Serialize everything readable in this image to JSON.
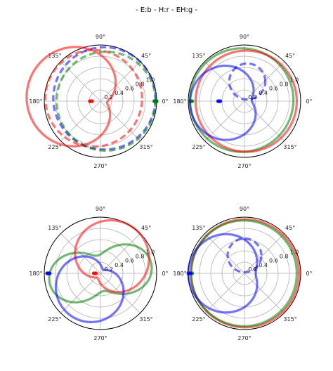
{
  "figure": {
    "title": "- E:b - H:r - EH:g -"
  },
  "colors": {
    "E": "#0000ff",
    "H": "#ff0000",
    "EH": "#008000"
  },
  "chart_data": [
    {
      "type": "line",
      "projection": "polar",
      "angle_ticks": [
        "0°",
        "45°",
        "90°",
        "135°",
        "180°",
        "225°",
        "270°",
        "315°"
      ],
      "radial_ticks": [
        "0.2",
        "0.4",
        "0.6",
        "0.8",
        "1.0"
      ],
      "rlim": [
        0,
        1.0
      ],
      "grid": true,
      "series": [
        {
          "key": "H",
          "style": "dashed",
          "curve": "circle",
          "params": {
            "cx": -0.12,
            "cy": 0.05,
            "R": 0.86
          },
          "markers": [
            {
              "r": 0.17,
              "theta_deg": 180
            }
          ]
        },
        {
          "key": "E",
          "style": "dashed",
          "curve": "circle",
          "params": {
            "cx": 0.07,
            "cy": 0.05,
            "R": 0.91
          },
          "markers": [
            {
              "r": 0.98,
              "theta_deg": 0
            }
          ]
        },
        {
          "key": "EH",
          "style": "dashed",
          "curve": "circle",
          "params": {
            "cx": 0.1,
            "cy": 0.0,
            "R": 0.88
          },
          "markers": [
            {
              "r": 0.98,
              "theta_deg": 0
            }
          ]
        },
        {
          "key": "H",
          "style": "solid",
          "curve": "lobe",
          "params": {
            "A": 0.72,
            "B": -0.6,
            "k": 1,
            "phi": -10
          },
          "markers": []
        }
      ]
    },
    {
      "type": "line",
      "projection": "polar",
      "angle_ticks": [
        "0°",
        "45°",
        "90°",
        "135°",
        "180°",
        "225°",
        "270°",
        "315°"
      ],
      "radial_ticks": [
        "0.2",
        "0.4",
        "0.6",
        "0.8",
        "1.0"
      ],
      "rlim": [
        0,
        1.0
      ],
      "grid": true,
      "series": [
        {
          "key": "EH",
          "style": "solid",
          "curve": "circle",
          "params": {
            "cx": -0.05,
            "cy": 0.02,
            "R": 0.92
          },
          "markers": [
            {
              "r": 0.95,
              "theta_deg": 180
            }
          ]
        },
        {
          "key": "H",
          "style": "solid",
          "curve": "circle",
          "params": {
            "cx": 0.03,
            "cy": 0.0,
            "R": 0.9
          },
          "markers": []
        },
        {
          "key": "E",
          "style": "solid",
          "curve": "lobe",
          "params": {
            "A": 0.55,
            "B": 0.42,
            "k": 1,
            "phi": 185
          },
          "markers": [
            {
              "r": 0.45,
              "theta_deg": 180
            }
          ]
        },
        {
          "key": "E",
          "style": "dashed",
          "curve": "circle",
          "params": {
            "cx": 0.05,
            "cy": 0.35,
            "R": 0.32
          },
          "markers": []
        }
      ]
    },
    {
      "type": "line",
      "projection": "polar",
      "angle_ticks": [
        "0°",
        "45°",
        "90°",
        "135°",
        "180°",
        "225°",
        "270°",
        "315°"
      ],
      "radial_ticks": [
        "0.2",
        "0.4",
        "0.6",
        "0.8",
        "1.0"
      ],
      "rlim": [
        0,
        1.0
      ],
      "grid": true,
      "series": [
        {
          "key": "EH",
          "style": "solid",
          "curve": "lobe",
          "params": {
            "A": 0.62,
            "B": 0.3,
            "k": 2,
            "phi": 10
          },
          "markers": [
            {
              "r": 0.92,
              "theta_deg": 180
            }
          ]
        },
        {
          "key": "H",
          "style": "solid",
          "curve": "lobe",
          "params": {
            "A": 0.55,
            "B": 0.45,
            "k": 1,
            "phi": 55
          },
          "markers": [
            {
              "r": 0.1,
              "theta_deg": 180
            }
          ]
        },
        {
          "key": "E",
          "style": "solid",
          "curve": "lobe",
          "params": {
            "A": 0.5,
            "B": 0.42,
            "k": 1,
            "phi": 235
          },
          "markers": [
            {
              "r": 0.93,
              "theta_deg": 180
            }
          ]
        }
      ]
    },
    {
      "type": "line",
      "projection": "polar",
      "angle_ticks": [
        "0°",
        "45°",
        "90°",
        "135°",
        "180°",
        "225°",
        "270°",
        "315°"
      ],
      "radial_ticks": [
        "0.2",
        "0.4",
        "0.6",
        "0.8",
        "1.0"
      ],
      "rlim": [
        0,
        1.0
      ],
      "grid": true,
      "series": [
        {
          "key": "H",
          "style": "solid",
          "curve": "circle",
          "params": {
            "cx": 0.01,
            "cy": 0.0,
            "R": 0.96
          },
          "markers": []
        },
        {
          "key": "EH",
          "style": "solid",
          "curve": "circle",
          "params": {
            "cx": -0.01,
            "cy": 0.0,
            "R": 0.94
          },
          "markers": [
            {
              "r": 0.95,
              "theta_deg": 180
            }
          ]
        },
        {
          "key": "E",
          "style": "solid",
          "curve": "lobe",
          "params": {
            "A": 0.6,
            "B": -0.4,
            "k": 1,
            "phi": 0
          },
          "markers": [
            {
              "r": 0.98,
              "theta_deg": 180
            }
          ]
        },
        {
          "key": "E",
          "style": "dashed",
          "curve": "circle",
          "params": {
            "cx": 0.0,
            "cy": 0.32,
            "R": 0.3
          },
          "markers": []
        }
      ]
    }
  ]
}
